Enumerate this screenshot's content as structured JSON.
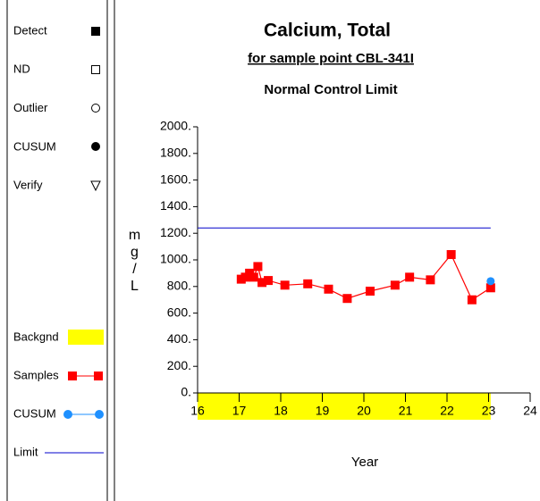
{
  "chart_data": {
    "type": "line",
    "title": "Calcium, Total",
    "subtitle": "for sample point CBL-341I",
    "limit_title": "Normal Control Limit",
    "xlabel": "Year",
    "ylabel": "mg/L",
    "xlim": [
      16,
      24
    ],
    "xticks": [
      16,
      17,
      18,
      19,
      20,
      21,
      22,
      23,
      24
    ],
    "ylim": [
      0,
      2000
    ],
    "yticks": [
      {
        "value": 0,
        "label": "0."
      },
      {
        "value": 200,
        "label": "200."
      },
      {
        "value": 400,
        "label": "400."
      },
      {
        "value": 600,
        "label": "600."
      },
      {
        "value": 800,
        "label": "800."
      },
      {
        "value": 1000,
        "label": "1000."
      },
      {
        "value": 1200,
        "label": "1200."
      },
      {
        "value": 1400,
        "label": "1400."
      },
      {
        "value": 1600,
        "label": "1600."
      },
      {
        "value": 1800,
        "label": "1800."
      },
      {
        "value": 2000,
        "label": "2000."
      }
    ],
    "legend_symbols": [
      "Detect",
      "ND",
      "Outlier",
      "CUSUM",
      "Verify"
    ],
    "background": {
      "name": "Backgnd",
      "color": "#ffff00",
      "x": [
        16,
        23.05
      ]
    },
    "series": [
      {
        "name": "Samples",
        "color": "#ff0000",
        "x": [
          17.05,
          17.15,
          17.25,
          17.35,
          17.45,
          17.55,
          17.7,
          18.1,
          18.65,
          19.15,
          19.6,
          20.15,
          20.75,
          21.1,
          21.6,
          22.1,
          22.6,
          23.05
        ],
        "values": [
          855,
          870,
          900,
          870,
          950,
          830,
          845,
          810,
          820,
          780,
          710,
          765,
          810,
          870,
          850,
          1040,
          700,
          790
        ]
      },
      {
        "name": "CUSUM",
        "color": "#1e90ff",
        "x": [
          23.05
        ],
        "values": [
          840
        ]
      }
    ],
    "limit": {
      "name": "Limit",
      "color": "#0000cc",
      "value": 1240,
      "x": [
        16,
        23.05
      ]
    }
  }
}
